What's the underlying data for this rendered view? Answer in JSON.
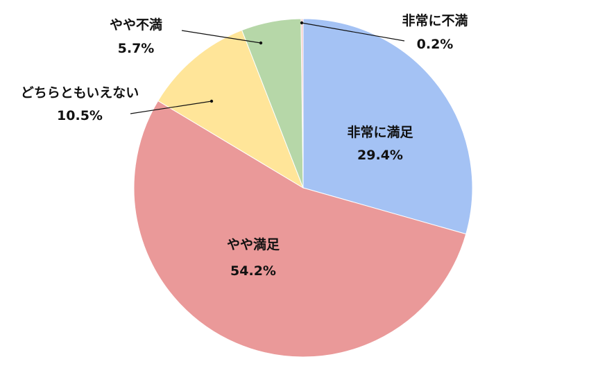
{
  "chart_data": {
    "type": "pie",
    "title": "",
    "slices": [
      {
        "label": "非常に満足",
        "value": 29.4,
        "value_text": "29.4%",
        "color": "#a4c2f4"
      },
      {
        "label": "やや満足",
        "value": 54.2,
        "value_text": "54.2%",
        "color": "#ea9999"
      },
      {
        "label": "どちらともいえない",
        "value": 10.5,
        "value_text": "10.5%",
        "color": "#ffe599"
      },
      {
        "label": "やや不満",
        "value": 5.7,
        "value_text": "5.7%",
        "color": "#b6d7a8"
      },
      {
        "label": "非常に不満",
        "value": 0.2,
        "value_text": "0.2%",
        "color": "#f4cccc"
      }
    ],
    "start_position": "12 o'clock",
    "direction": "clockwise",
    "legend": "none (labels drawn on/next to slices)"
  }
}
